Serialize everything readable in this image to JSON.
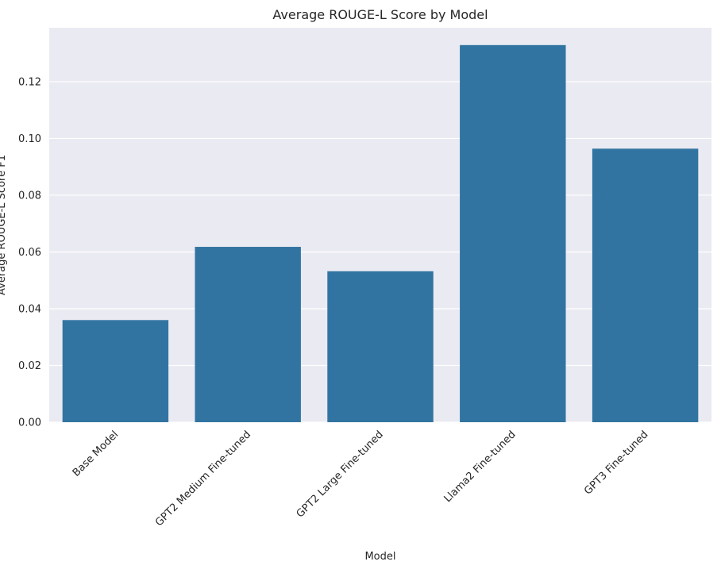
{
  "chart_data": {
    "type": "bar",
    "title": "Average ROUGE-L Score by Model",
    "xlabel": "Model",
    "ylabel": "Average ROUGE-L Score F1",
    "categories": [
      "Base Model",
      "GPT2 Medium Fine-tuned",
      "GPT2 Large Fine-tuned",
      "Llama2 Fine-tuned",
      "GPT3 Fine-tuned"
    ],
    "values": [
      0.036,
      0.0618,
      0.0532,
      0.1329,
      0.0964
    ],
    "ylim": [
      0,
      0.139
    ],
    "yticks": [
      "0.00",
      "0.02",
      "0.04",
      "0.06",
      "0.08",
      "0.10",
      "0.12"
    ],
    "grid": true,
    "colors": {
      "bar": "#3274a1",
      "plot_background": "#eaeaf2",
      "grid": "#ffffff",
      "text": "#262626"
    }
  }
}
